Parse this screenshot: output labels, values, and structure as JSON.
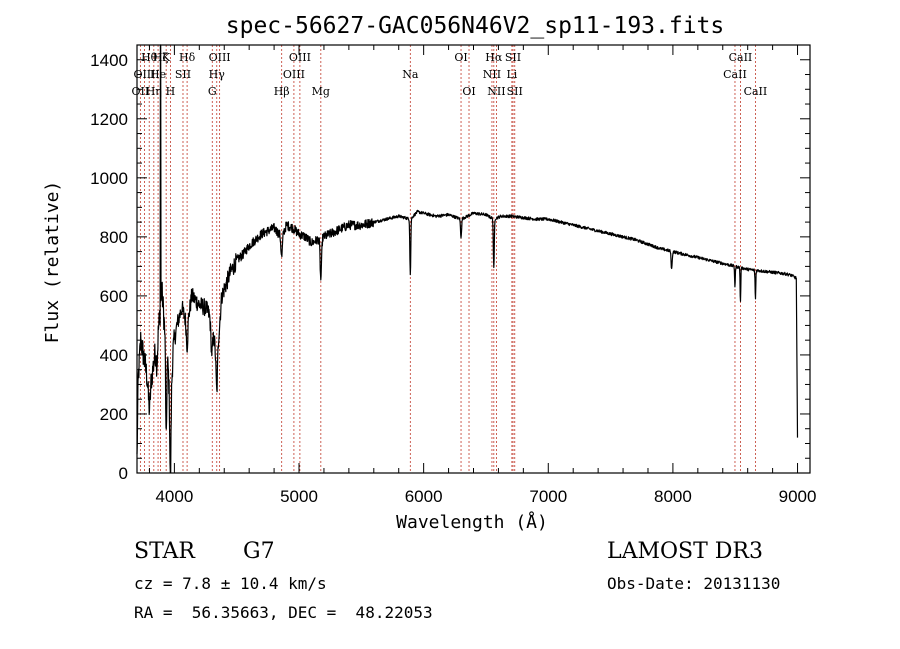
{
  "chart_data": {
    "type": "line",
    "title": "spec-56627-GAC056N46V2_sp11-193.fits",
    "xlabel": "Wavelength (Å)",
    "ylabel": "Flux (relative)",
    "xlim": [
      3700,
      9100
    ],
    "ylim": [
      0,
      1450
    ],
    "x_ticks": [
      4000,
      5000,
      6000,
      7000,
      8000,
      9000
    ],
    "y_ticks": [
      0,
      200,
      400,
      600,
      800,
      1000,
      1200,
      1400
    ],
    "grid": false,
    "spectrum_anchors": [
      [
        3700,
        50
      ],
      [
        3710,
        320
      ],
      [
        3730,
        450
      ],
      [
        3760,
        380
      ],
      [
        3790,
        300
      ],
      [
        3820,
        330
      ],
      [
        3850,
        420
      ],
      [
        3880,
        520
      ],
      [
        3900,
        620
      ],
      [
        3920,
        500
      ],
      [
        3950,
        350
      ],
      [
        3968,
        200
      ],
      [
        3990,
        420
      ],
      [
        4020,
        500
      ],
      [
        4060,
        560
      ],
      [
        4102,
        500
      ],
      [
        4140,
        600
      ],
      [
        4200,
        570
      ],
      [
        4250,
        560
      ],
      [
        4300,
        520
      ],
      [
        4340,
        380
      ],
      [
        4380,
        600
      ],
      [
        4450,
        680
      ],
      [
        4500,
        720
      ],
      [
        4550,
        740
      ],
      [
        4600,
        770
      ],
      [
        4650,
        790
      ],
      [
        4700,
        810
      ],
      [
        4750,
        820
      ],
      [
        4800,
        830
      ],
      [
        4861,
        800
      ],
      [
        4900,
        840
      ],
      [
        4950,
        830
      ],
      [
        5000,
        810
      ],
      [
        5050,
        800
      ],
      [
        5100,
        780
      ],
      [
        5150,
        790
      ],
      [
        5200,
        800
      ],
      [
        5300,
        820
      ],
      [
        5400,
        840
      ],
      [
        5500,
        840
      ],
      [
        5600,
        850
      ],
      [
        5700,
        860
      ],
      [
        5800,
        870
      ],
      [
        5893,
        860
      ],
      [
        5950,
        885
      ],
      [
        6000,
        880
      ],
      [
        6100,
        870
      ],
      [
        6200,
        875
      ],
      [
        6300,
        860
      ],
      [
        6400,
        880
      ],
      [
        6500,
        875
      ],
      [
        6562,
        860
      ],
      [
        6620,
        870
      ],
      [
        6700,
        870
      ],
      [
        6800,
        865
      ],
      [
        6900,
        860
      ],
      [
        7000,
        860
      ],
      [
        7100,
        850
      ],
      [
        7200,
        840
      ],
      [
        7300,
        830
      ],
      [
        7400,
        820
      ],
      [
        7500,
        810
      ],
      [
        7600,
        800
      ],
      [
        7700,
        790
      ],
      [
        7800,
        775
      ],
      [
        7900,
        760
      ],
      [
        8000,
        750
      ],
      [
        8100,
        740
      ],
      [
        8200,
        730
      ],
      [
        8300,
        720
      ],
      [
        8400,
        710
      ],
      [
        8500,
        700
      ],
      [
        8600,
        690
      ],
      [
        8700,
        685
      ],
      [
        8800,
        680
      ],
      [
        8900,
        675
      ],
      [
        8950,
        670
      ],
      [
        8990,
        660
      ],
      [
        9000,
        120
      ]
    ],
    "absorption_features": [
      {
        "x": 3800,
        "depth": 90,
        "width": 10
      },
      {
        "x": 3860,
        "depth": 80,
        "width": 8
      },
      {
        "x": 3934,
        "depth": 330,
        "width": 6
      },
      {
        "x": 3968,
        "depth": 240,
        "width": 6
      },
      {
        "x": 4102,
        "depth": 70,
        "width": 8
      },
      {
        "x": 4300,
        "depth": 110,
        "width": 10
      },
      {
        "x": 4340,
        "depth": 110,
        "width": 8
      },
      {
        "x": 4861,
        "depth": 70,
        "width": 8
      },
      {
        "x": 5175,
        "depth": 140,
        "width": 8
      },
      {
        "x": 5893,
        "depth": 190,
        "width": 5
      },
      {
        "x": 6300,
        "depth": 60,
        "width": 6
      },
      {
        "x": 6563,
        "depth": 170,
        "width": 5
      },
      {
        "x": 7990,
        "depth": 60,
        "width": 6
      },
      {
        "x": 8498,
        "depth": 70,
        "width": 4
      },
      {
        "x": 8542,
        "depth": 120,
        "width": 4
      },
      {
        "x": 8662,
        "depth": 100,
        "width": 4
      }
    ],
    "emission_spike": {
      "x": 3888,
      "value": 1460
    },
    "lines": [
      {
        "x": 3727,
        "label": "OII",
        "row": 2
      },
      {
        "x": 3760,
        "label": "OIII",
        "row": 1
      },
      {
        "x": 3798,
        "label": "Hθ",
        "row": 0
      },
      {
        "x": 3835,
        "label": "Hη",
        "row": 2
      },
      {
        "x": 3869,
        "label": "He",
        "row": 1
      },
      {
        "x": 3889,
        "label": "Hζ",
        "row": 0
      },
      {
        "x": 3934,
        "label": "K",
        "row": 0
      },
      {
        "x": 3968,
        "label": "H",
        "row": 2
      },
      {
        "x": 4069,
        "label": "SII",
        "row": 1
      },
      {
        "x": 4102,
        "label": "Hδ",
        "row": 0
      },
      {
        "x": 4304,
        "label": "G",
        "row": 2
      },
      {
        "x": 4340,
        "label": "Hγ",
        "row": 1
      },
      {
        "x": 4363,
        "label": "OIII",
        "row": 0
      },
      {
        "x": 4861,
        "label": "Hβ",
        "row": 2
      },
      {
        "x": 4959,
        "label": "OIII",
        "row": 1
      },
      {
        "x": 5007,
        "label": "OIII",
        "row": 0
      },
      {
        "x": 5175,
        "label": "Mg",
        "row": 2
      },
      {
        "x": 5893,
        "label": "Na",
        "row": 1
      },
      {
        "x": 6300,
        "label": "OI",
        "row": 0
      },
      {
        "x": 6364,
        "label": "OI",
        "row": 2
      },
      {
        "x": 6548,
        "label": "NII",
        "row": 1
      },
      {
        "x": 6563,
        "label": "Hα",
        "row": 0
      },
      {
        "x": 6584,
        "label": "NII",
        "row": 2
      },
      {
        "x": 6708,
        "label": "Li",
        "row": 1
      },
      {
        "x": 6717,
        "label": "SII",
        "row": 0
      },
      {
        "x": 6731,
        "label": "SII",
        "row": 2
      },
      {
        "x": 8498,
        "label": "CaII",
        "row": 1
      },
      {
        "x": 8542,
        "label": "CaII",
        "row": 0
      },
      {
        "x": 8662,
        "label": "CaII",
        "row": 2
      }
    ]
  },
  "info": {
    "object_class": "STAR",
    "subclass": "G7",
    "survey": "LAMOST DR3",
    "cz": "cz = 7.8 ± 10.4 km/s",
    "obs_date": "Obs-Date: 20131130",
    "coords": "RA =  56.35663, DEC =  48.22053"
  },
  "colors": {
    "line_marker": "#c0392b",
    "spectrum": "#000000"
  }
}
